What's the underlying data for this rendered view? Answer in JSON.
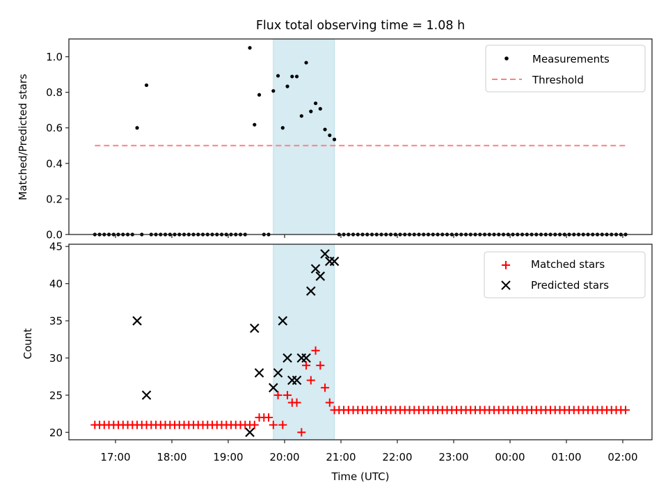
{
  "chart_data": [
    {
      "type": "scatter",
      "title": "Flux total observing time = 1.08 h",
      "xlabel": "",
      "ylabel": "Matched/Predicted stars",
      "ylim": [
        0,
        1.1
      ],
      "yticks": [
        "0.0",
        "0.2",
        "0.4",
        "0.6",
        "0.8",
        "1.0"
      ],
      "ytick_values": [
        0,
        0.2,
        0.4,
        0.6,
        0.8,
        1.0
      ],
      "legend": {
        "placement": "upper-right",
        "entries": [
          {
            "label": "Measurements",
            "marker": "dot",
            "color": "#000000"
          },
          {
            "label": "Threshold",
            "marker": "dashed-line",
            "color": "#ff7f7f"
          }
        ]
      },
      "threshold": 0.5,
      "shaded_interval": {
        "start": "19:48",
        "end": "20:53",
        "color": "#add8e6"
      }
    },
    {
      "type": "scatter",
      "title": "",
      "xlabel": "Time (UTC)",
      "ylabel": "Count",
      "ylim": [
        19,
        45.3
      ],
      "yticks": [
        "20",
        "25",
        "30",
        "35",
        "40",
        "45"
      ],
      "ytick_values": [
        20,
        25,
        30,
        35,
        40,
        45
      ],
      "legend": {
        "placement": "upper-right",
        "entries": [
          {
            "label": "Matched stars",
            "marker": "plus",
            "color": "#ff0000"
          },
          {
            "label": "Predicted stars",
            "marker": "x",
            "color": "#000000"
          }
        ]
      },
      "shaded_interval": {
        "start": "19:48",
        "end": "20:53",
        "color": "#add8e6"
      }
    }
  ],
  "series": {
    "start_time": "16:38",
    "step_minutes": 5,
    "count": 114,
    "matched": [
      21,
      21,
      21,
      21,
      21,
      21,
      21,
      21,
      21,
      21,
      21,
      21,
      21,
      21,
      21,
      21,
      21,
      21,
      21,
      21,
      21,
      21,
      21,
      21,
      21,
      21,
      21,
      21,
      21,
      21,
      21,
      21,
      21,
      21,
      21,
      22,
      22,
      22,
      21,
      25,
      21,
      25,
      24,
      24,
      20,
      29,
      27,
      31,
      29,
      26,
      24,
      23,
      23,
      23,
      23,
      23,
      23,
      23,
      23,
      23,
      23,
      23,
      23,
      23,
      23,
      23,
      23,
      23,
      23,
      23,
      23,
      23,
      23,
      23,
      23,
      23,
      23,
      23,
      23,
      23,
      23,
      23,
      23,
      23,
      23,
      23,
      23,
      23,
      23,
      23,
      23,
      23,
      23,
      23,
      23,
      23,
      23,
      23,
      23,
      23,
      23,
      23,
      23,
      23,
      23,
      23,
      23,
      23,
      23,
      23,
      23,
      23,
      23,
      23
    ],
    "predicted": {
      "9": 35,
      "11": 25,
      "33": 20,
      "34": 34,
      "35": 28,
      "38": 26,
      "39": 28,
      "40": 35,
      "41": 30,
      "42": 27,
      "43": 27,
      "44": 30,
      "45": 30,
      "46": 39,
      "47": 42,
      "48": 41,
      "49": 44,
      "50": 43,
      "51": 43
    },
    "ratio_zero_gaps": [
      9,
      11,
      33,
      34,
      35
    ]
  },
  "xaxis": {
    "ticks": [
      "17:00",
      "18:00",
      "19:00",
      "20:00",
      "21:00",
      "22:00",
      "23:00",
      "00:00",
      "01:00",
      "02:00"
    ],
    "tick_hours_from_1700": [
      0,
      1,
      2,
      3,
      4,
      5,
      6,
      7,
      8,
      9
    ],
    "label": "Time (UTC)"
  }
}
